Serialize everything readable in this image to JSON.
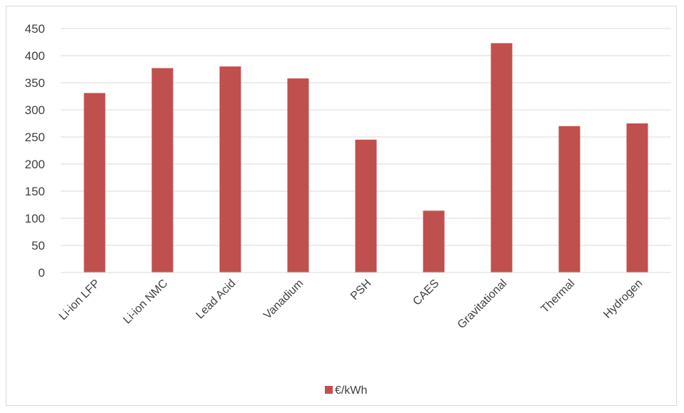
{
  "chart_data": {
    "type": "bar",
    "categories": [
      "Li-ion LFP",
      "Li-ion NMC",
      "Lead Acid",
      "Vanadium",
      "PSH",
      "CAES",
      "Gravitational",
      "Thermal",
      "Hydrogen"
    ],
    "series": [
      {
        "name": "€/kWh",
        "color": "#c0504d",
        "values": [
          331,
          377,
          380,
          358,
          245,
          114,
          423,
          270,
          275
        ]
      }
    ],
    "title": "",
    "xlabel": "",
    "ylabel": "",
    "ylim": [
      0,
      450
    ],
    "yticks": [
      0,
      50,
      100,
      150,
      200,
      250,
      300,
      350,
      400,
      450
    ],
    "grid": true,
    "legend": "bottom-center"
  }
}
